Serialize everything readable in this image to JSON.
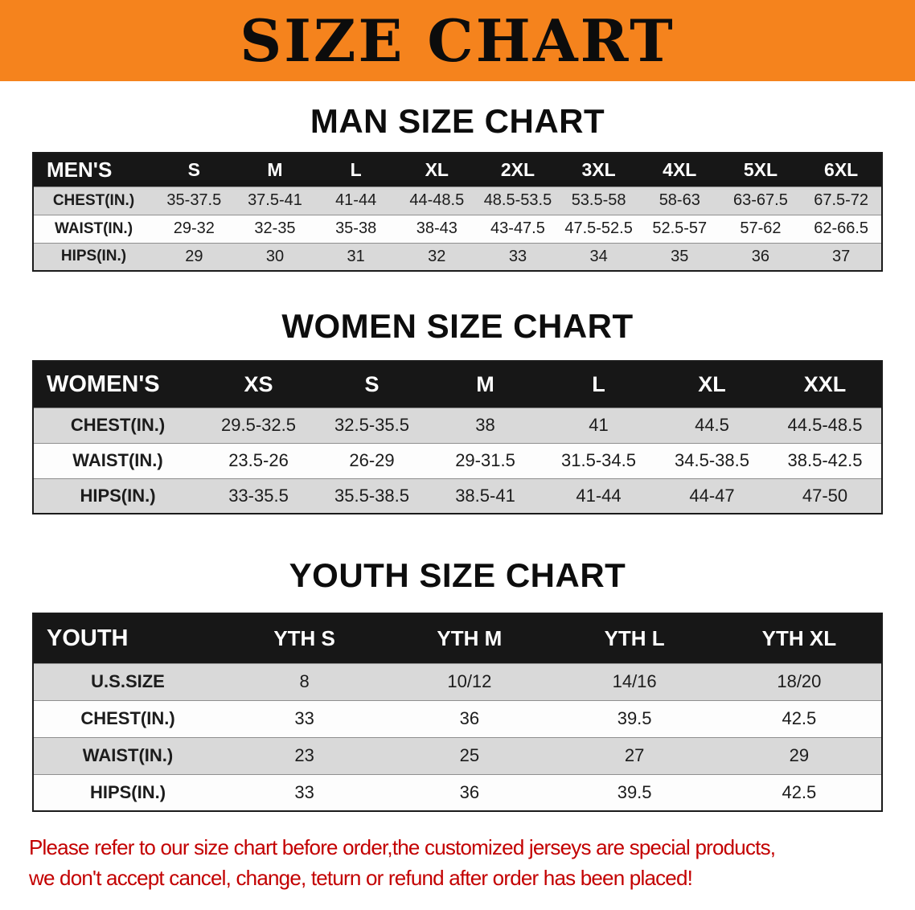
{
  "banner": {
    "title": "SIZE CHART"
  },
  "theme": {
    "banner_orange": "#f5831d",
    "table_header_black": "#171717",
    "row_gray": "#d9d9d9",
    "disclaimer_red": "#c30000"
  },
  "sections": [
    {
      "id": "men",
      "heading": "MAN SIZE CHART",
      "table": {
        "header": [
          "MEN'S",
          "S",
          "M",
          "L",
          "XL",
          "2XL",
          "3XL",
          "4XL",
          "5XL",
          "6XL"
        ],
        "rows": [
          [
            "CHEST(IN.)",
            "35-37.5",
            "37.5-41",
            "41-44",
            "44-48.5",
            "48.5-53.5",
            "53.5-58",
            "58-63",
            "63-67.5",
            "67.5-72"
          ],
          [
            "WAIST(IN.)",
            "29-32",
            "32-35",
            "35-38",
            "38-43",
            "43-47.5",
            "47.5-52.5",
            "52.5-57",
            "57-62",
            "62-66.5"
          ],
          [
            "HIPS(IN.)",
            "29",
            "30",
            "31",
            "32",
            "33",
            "34",
            "35",
            "36",
            "37"
          ]
        ]
      }
    },
    {
      "id": "women",
      "heading": "WOMEN SIZE CHART",
      "table": {
        "header": [
          "WOMEN'S",
          "XS",
          "S",
          "M",
          "L",
          "XL",
          "XXL"
        ],
        "rows": [
          [
            "CHEST(IN.)",
            "29.5-32.5",
            "32.5-35.5",
            "38",
            "41",
            "44.5",
            "44.5-48.5"
          ],
          [
            "WAIST(IN.)",
            "23.5-26",
            "26-29",
            "29-31.5",
            "31.5-34.5",
            "34.5-38.5",
            "38.5-42.5"
          ],
          [
            "HIPS(IN.)",
            "33-35.5",
            "35.5-38.5",
            "38.5-41",
            "41-44",
            "44-47",
            "47-50"
          ]
        ]
      }
    },
    {
      "id": "youth",
      "heading": "YOUTH SIZE CHART",
      "table": {
        "header": [
          "YOUTH",
          "YTH S",
          "YTH M",
          "YTH L",
          "YTH XL"
        ],
        "rows": [
          [
            "U.S.SIZE",
            "8",
            "10/12",
            "14/16",
            "18/20"
          ],
          [
            "CHEST(IN.)",
            "33",
            "36",
            "39.5",
            "42.5"
          ],
          [
            "WAIST(IN.)",
            "23",
            "25",
            "27",
            "29"
          ],
          [
            "HIPS(IN.)",
            "33",
            "36",
            "39.5",
            "42.5"
          ]
        ]
      }
    }
  ],
  "disclaimer": {
    "line1": "Please refer to our size chart before order,the customized jerseys are special products,",
    "line2": "we don't accept cancel, change, teturn or refund after order has been placed!"
  }
}
